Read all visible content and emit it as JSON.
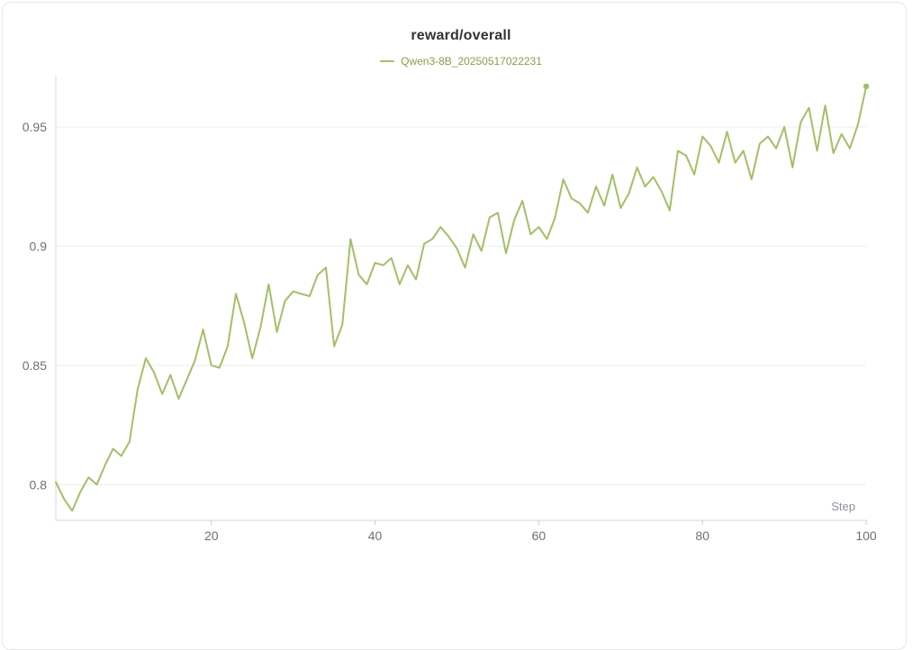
{
  "chart": {
    "title": "reward/overall",
    "legend": [
      {
        "label": "Qwen3-8B_20250517022231",
        "color": "#a3c065",
        "text_color": "#87a04e"
      }
    ]
  },
  "chart_data": {
    "type": "line",
    "title": "reward/overall",
    "xlabel": "Step",
    "ylabel": "",
    "x_start": 1,
    "x_step": 1,
    "x_ticks": [
      20,
      40,
      60,
      80,
      100
    ],
    "y_ticks": [
      0.8,
      0.85,
      0.9,
      0.95
    ],
    "xlim": [
      1,
      100
    ],
    "ylim": [
      0.785,
      0.97
    ],
    "grid": true,
    "legend_position": "top",
    "series": [
      {
        "name": "Qwen3-8B_20250517022231",
        "color": "#a3c065",
        "values": [
          0.801,
          0.794,
          0.789,
          0.797,
          0.803,
          0.8,
          0.808,
          0.815,
          0.812,
          0.818,
          0.84,
          0.853,
          0.847,
          0.838,
          0.846,
          0.836,
          0.844,
          0.852,
          0.865,
          0.85,
          0.849,
          0.858,
          0.88,
          0.868,
          0.853,
          0.866,
          0.884,
          0.864,
          0.877,
          0.881,
          0.88,
          0.879,
          0.888,
          0.891,
          0.858,
          0.867,
          0.903,
          0.888,
          0.884,
          0.893,
          0.892,
          0.895,
          0.884,
          0.892,
          0.886,
          0.901,
          0.903,
          0.908,
          0.904,
          0.899,
          0.891,
          0.905,
          0.898,
          0.912,
          0.914,
          0.897,
          0.911,
          0.919,
          0.905,
          0.908,
          0.903,
          0.912,
          0.928,
          0.92,
          0.918,
          0.914,
          0.925,
          0.917,
          0.93,
          0.916,
          0.922,
          0.933,
          0.925,
          0.929,
          0.923,
          0.915,
          0.94,
          0.938,
          0.93,
          0.946,
          0.942,
          0.935,
          0.948,
          0.935,
          0.94,
          0.928,
          0.943,
          0.946,
          0.941,
          0.95,
          0.933,
          0.952,
          0.958,
          0.94,
          0.959,
          0.939,
          0.947,
          0.941,
          0.951,
          0.967
        ]
      }
    ]
  },
  "colors": {
    "line": "#a3c065",
    "grid": "#ebedf0",
    "axis_line": "#d4d7dc",
    "tick_mark": "#c9ccd1",
    "axis_text": "#6e7079",
    "xlabel_text": "#8d939b",
    "title_text": "#333333"
  }
}
